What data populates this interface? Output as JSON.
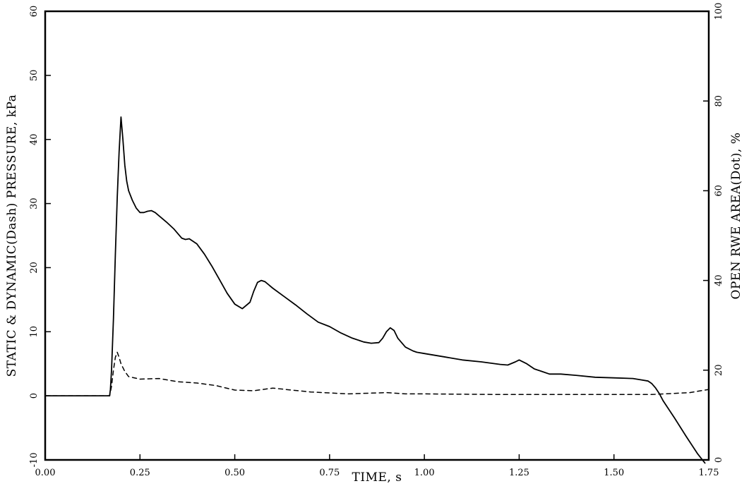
{
  "chart_data": {
    "type": "line",
    "title": "",
    "xlabel": "TIME, s",
    "ylabel": "STATIC & DYNAMIC(Dash) PRESSURE, kPa",
    "y2label": "OPEN RWE AREA(Dot), %",
    "xlim": [
      0,
      1.75
    ],
    "ylim": [
      -10,
      60
    ],
    "y2lim": [
      0,
      100
    ],
    "x_ticks": [
      0.0,
      0.25,
      0.5,
      0.75,
      1.0,
      1.25,
      1.5,
      1.75
    ],
    "x_tick_labels": [
      "0.00",
      "0.25",
      "0.50",
      "0.75",
      "1.00",
      "1.25",
      "1.50",
      "1.75"
    ],
    "y_ticks": [
      -10,
      0,
      10,
      20,
      30,
      40,
      50,
      60
    ],
    "y_tick_labels": [
      "-10",
      "0",
      "10",
      "20",
      "30",
      "40",
      "50",
      "60"
    ],
    "y2_ticks": [
      0,
      20,
      40,
      60,
      80,
      100
    ],
    "y2_tick_labels": [
      "0",
      "20",
      "40",
      "60",
      "80",
      "100"
    ],
    "grid": false,
    "legend": "none",
    "series": [
      {
        "axis": "left",
        "style": "solid",
        "x": [
          0.0,
          0.17,
          0.172,
          0.175,
          0.18,
          0.185,
          0.19,
          0.195,
          0.2,
          0.205,
          0.21,
          0.215,
          0.22,
          0.23,
          0.24,
          0.25,
          0.26,
          0.27,
          0.28,
          0.29,
          0.3,
          0.32,
          0.34,
          0.36,
          0.37,
          0.38,
          0.4,
          0.42,
          0.44,
          0.46,
          0.48,
          0.5,
          0.52,
          0.54,
          0.55,
          0.56,
          0.57,
          0.58,
          0.6,
          0.63,
          0.66,
          0.69,
          0.72,
          0.75,
          0.78,
          0.81,
          0.84,
          0.86,
          0.88,
          0.89,
          0.9,
          0.91,
          0.92,
          0.93,
          0.95,
          0.97,
          0.98,
          1.0,
          1.05,
          1.1,
          1.15,
          1.2,
          1.22,
          1.24,
          1.25,
          1.27,
          1.29,
          1.31,
          1.33,
          1.36,
          1.4,
          1.45,
          1.5,
          1.55,
          1.57,
          1.59,
          1.6,
          1.61,
          1.62,
          1.63,
          1.66,
          1.69,
          1.72,
          1.74
        ],
        "values": [
          0,
          0,
          1,
          4,
          12,
          22,
          31,
          38,
          43.5,
          40,
          36,
          33.5,
          32,
          30.5,
          29.3,
          28.6,
          28.6,
          28.8,
          28.9,
          28.6,
          28.1,
          27.1,
          26.0,
          24.6,
          24.4,
          24.5,
          23.7,
          22.1,
          20.2,
          18.1,
          16.0,
          14.3,
          13.6,
          14.6,
          16.3,
          17.7,
          18.0,
          17.8,
          16.8,
          15.5,
          14.2,
          12.8,
          11.5,
          10.8,
          9.8,
          9.0,
          8.4,
          8.2,
          8.3,
          9.0,
          10.0,
          10.6,
          10.2,
          9.0,
          7.6,
          7.0,
          6.8,
          6.6,
          6.1,
          5.6,
          5.3,
          4.9,
          4.8,
          5.3,
          5.6,
          5.0,
          4.2,
          3.8,
          3.4,
          3.4,
          3.2,
          2.9,
          2.8,
          2.7,
          2.5,
          2.3,
          1.9,
          1.2,
          0.3,
          -0.8,
          -3.5,
          -6.3,
          -9.0,
          -10.5
        ]
      },
      {
        "axis": "left",
        "style": "dashed",
        "x": [
          0.0,
          0.17,
          0.175,
          0.18,
          0.185,
          0.19,
          0.195,
          0.2,
          0.21,
          0.22,
          0.25,
          0.3,
          0.35,
          0.4,
          0.45,
          0.5,
          0.55,
          0.6,
          0.65,
          0.7,
          0.8,
          0.9,
          0.95,
          1.0,
          1.1,
          1.2,
          1.3,
          1.4,
          1.5,
          1.6,
          1.7,
          1.75
        ],
        "values": [
          0,
          0,
          1.5,
          4.0,
          6.0,
          6.8,
          6.0,
          5.0,
          3.8,
          3.0,
          2.6,
          2.7,
          2.2,
          2.0,
          1.6,
          0.9,
          0.8,
          1.2,
          0.9,
          0.6,
          0.3,
          0.5,
          0.3,
          0.3,
          0.25,
          0.2,
          0.2,
          0.2,
          0.2,
          0.2,
          0.5,
          1.0
        ]
      }
    ]
  }
}
